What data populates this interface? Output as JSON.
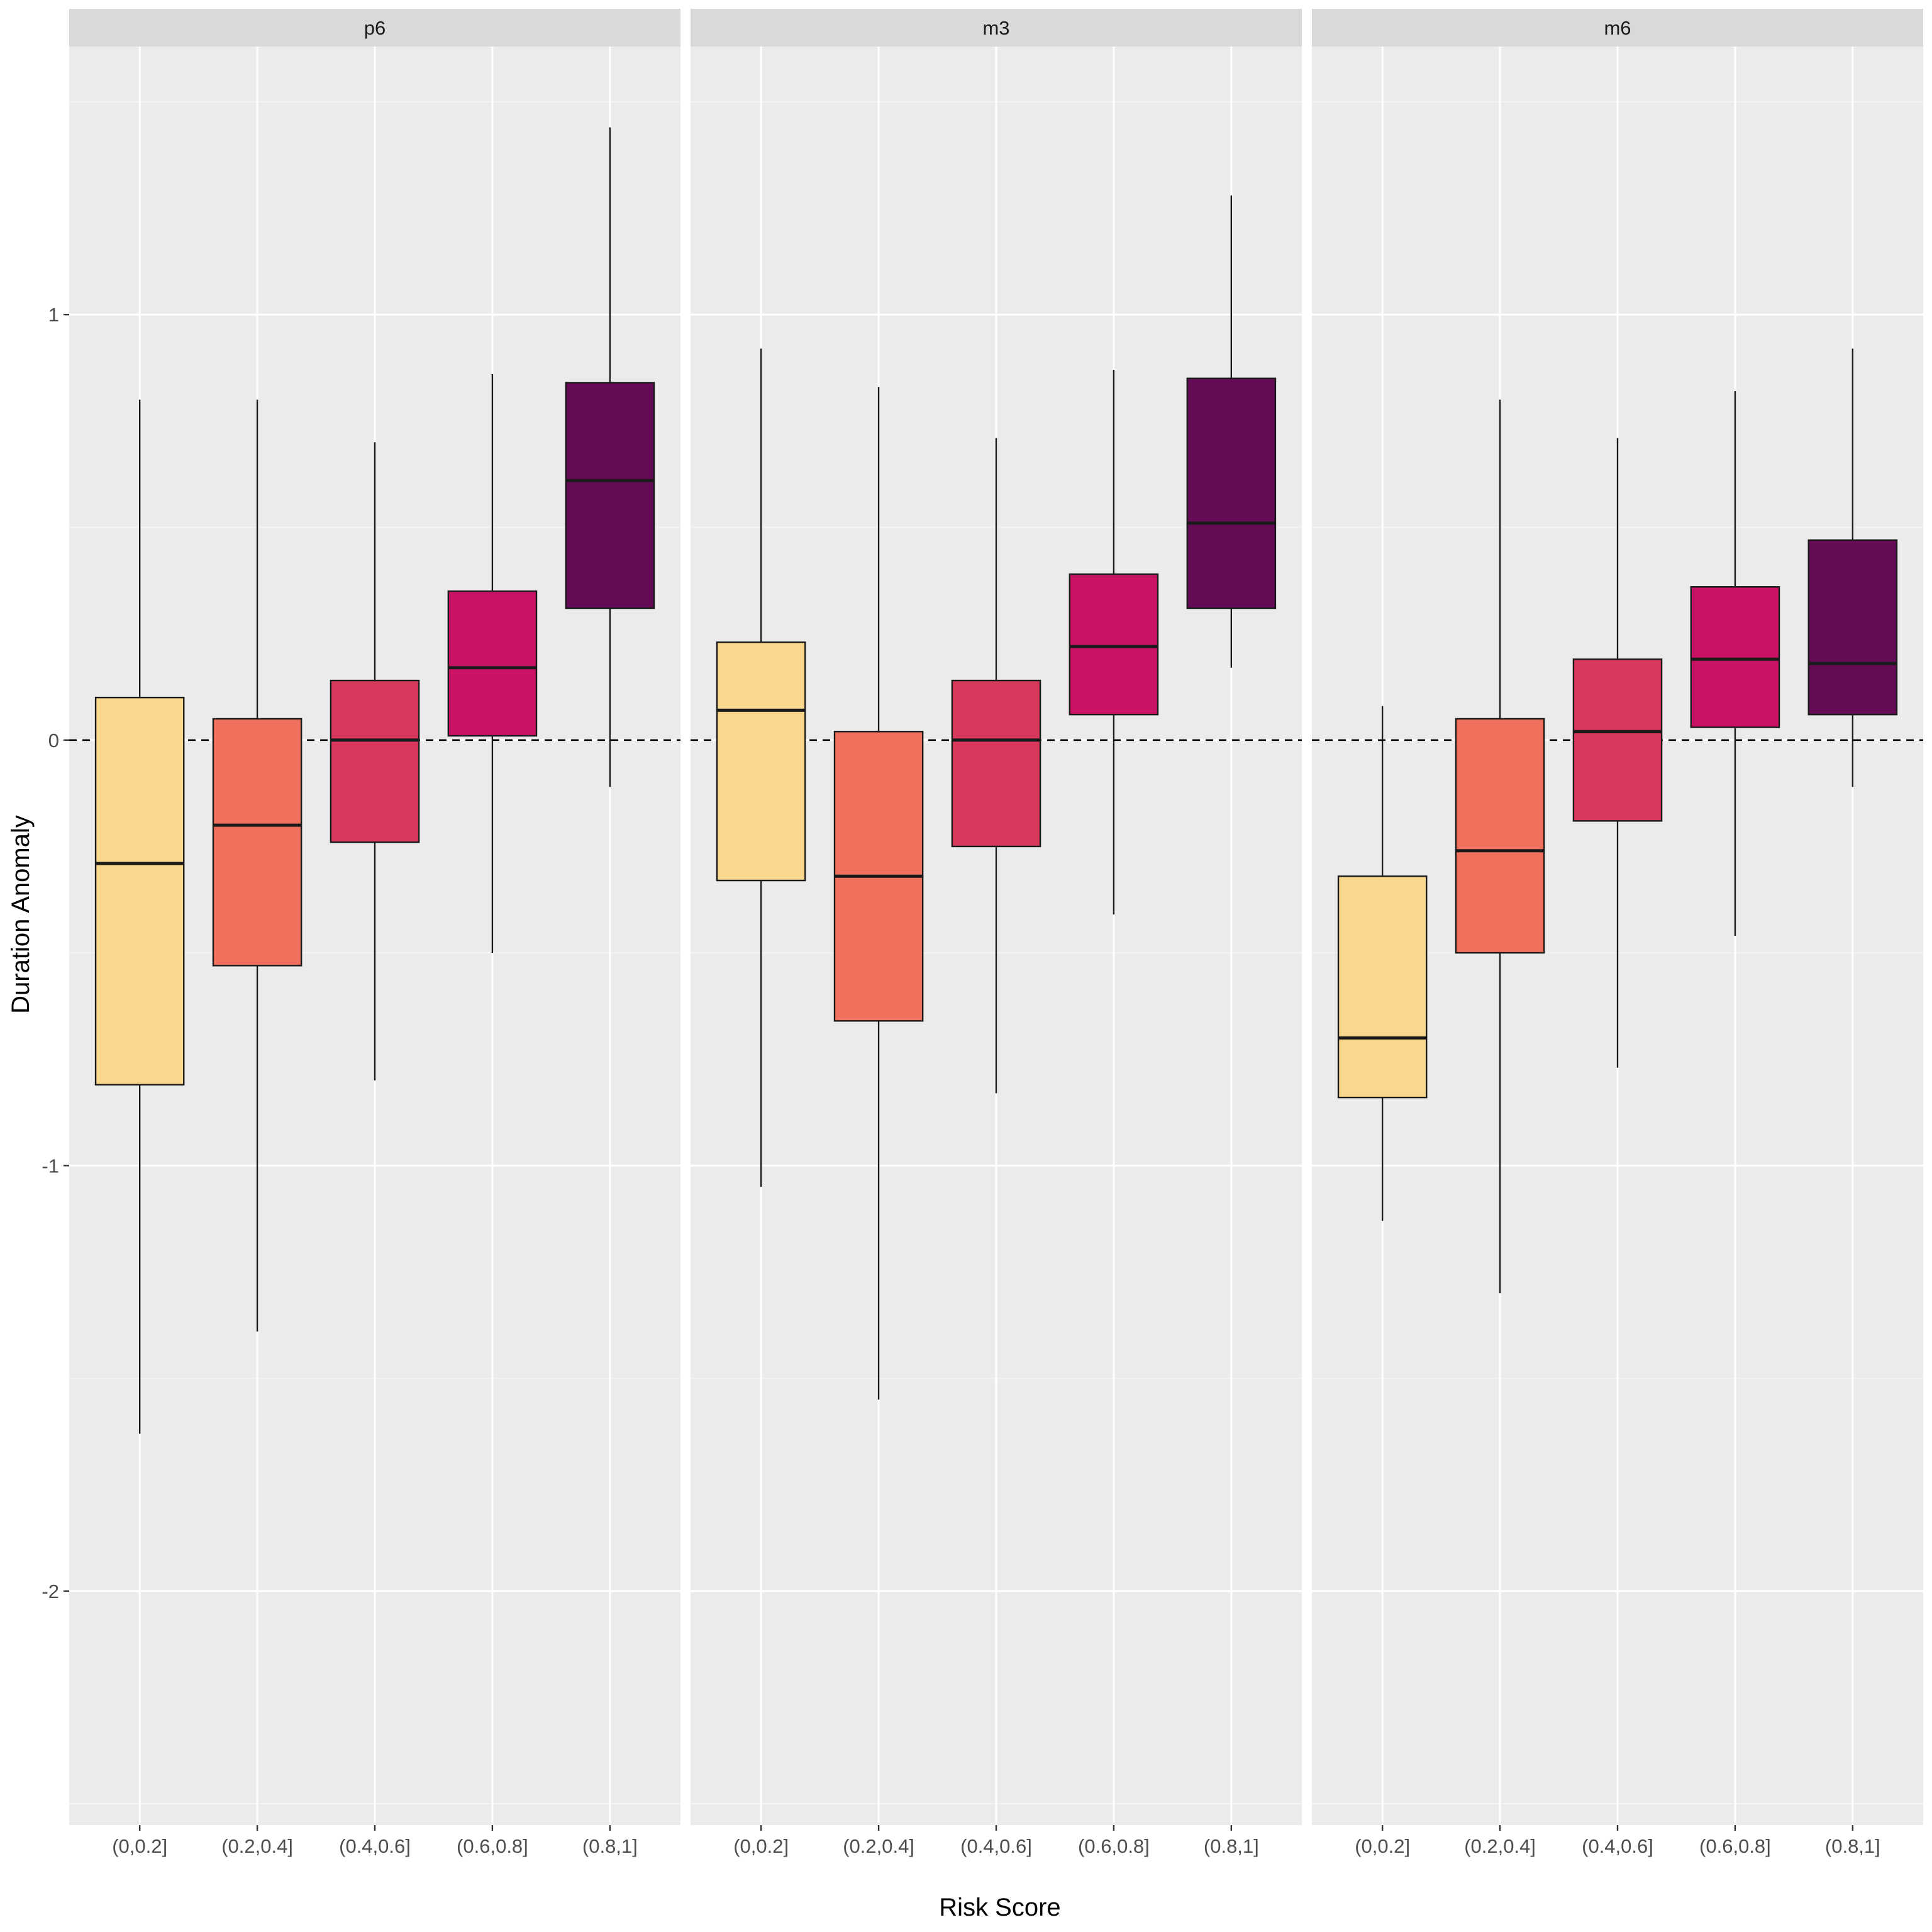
{
  "chart_data": {
    "type": "boxplot",
    "xlabel": "Risk Score",
    "ylabel": "Duration Anomaly",
    "categories": [
      "(0,0.2]",
      "(0.2,0.4]",
      "(0.4,0.6]",
      "(0.6,0.8]",
      "(0.8,1]"
    ],
    "ylim": [
      -2.55,
      1.63
    ],
    "yticks": [
      -2,
      -1,
      0,
      1
    ],
    "ytick_labels": [
      "-2",
      "-1",
      "0",
      "1"
    ],
    "reference_line": {
      "y": 0,
      "style": "dashed"
    },
    "colors": [
      "#F9D78C",
      "#F0705E",
      "#D8385C",
      "#CB1366",
      "#650A55"
    ],
    "panels": [
      {
        "name": "p6",
        "boxes": [
          {
            "category": "(0,0.2]",
            "min": -1.63,
            "q1": -0.81,
            "median": -0.29,
            "q3": 0.1,
            "max": 0.8
          },
          {
            "category": "(0.2,0.4]",
            "min": -1.39,
            "q1": -0.53,
            "median": -0.2,
            "q3": 0.05,
            "max": 0.8
          },
          {
            "category": "(0.4,0.6]",
            "min": -0.8,
            "q1": -0.24,
            "median": 0.0,
            "q3": 0.14,
            "max": 0.7
          },
          {
            "category": "(0.6,0.8]",
            "min": -0.5,
            "q1": 0.01,
            "median": 0.17,
            "q3": 0.35,
            "max": 0.86
          },
          {
            "category": "(0.8,1]",
            "min": -0.11,
            "q1": 0.31,
            "median": 0.61,
            "q3": 0.84,
            "max": 1.44
          }
        ]
      },
      {
        "name": "m3",
        "boxes": [
          {
            "category": "(0,0.2]",
            "min": -1.05,
            "q1": -0.33,
            "median": 0.07,
            "q3": 0.23,
            "max": 0.92
          },
          {
            "category": "(0.2,0.4]",
            "min": -1.55,
            "q1": -0.66,
            "median": -0.32,
            "q3": 0.02,
            "max": 0.83
          },
          {
            "category": "(0.4,0.6]",
            "min": -0.83,
            "q1": -0.25,
            "median": 0.0,
            "q3": 0.14,
            "max": 0.71
          },
          {
            "category": "(0.6,0.8]",
            "min": -0.41,
            "q1": 0.06,
            "median": 0.22,
            "q3": 0.39,
            "max": 0.87
          },
          {
            "category": "(0.8,1]",
            "min": 0.17,
            "q1": 0.31,
            "median": 0.51,
            "q3": 0.85,
            "max": 1.28
          }
        ]
      },
      {
        "name": "m6",
        "boxes": [
          {
            "category": "(0,0.2]",
            "min": -1.13,
            "q1": -0.84,
            "median": -0.7,
            "q3": -0.32,
            "max": 0.08
          },
          {
            "category": "(0.2,0.4]",
            "min": -1.3,
            "q1": -0.5,
            "median": -0.26,
            "q3": 0.05,
            "max": 0.8
          },
          {
            "category": "(0.4,0.6]",
            "min": -0.77,
            "q1": -0.19,
            "median": 0.02,
            "q3": 0.19,
            "max": 0.71
          },
          {
            "category": "(0.6,0.8]",
            "min": -0.46,
            "q1": 0.03,
            "median": 0.19,
            "q3": 0.36,
            "max": 0.82
          },
          {
            "category": "(0.8,1]",
            "min": -0.11,
            "q1": 0.06,
            "median": 0.18,
            "q3": 0.47,
            "max": 0.92
          }
        ]
      }
    ]
  }
}
